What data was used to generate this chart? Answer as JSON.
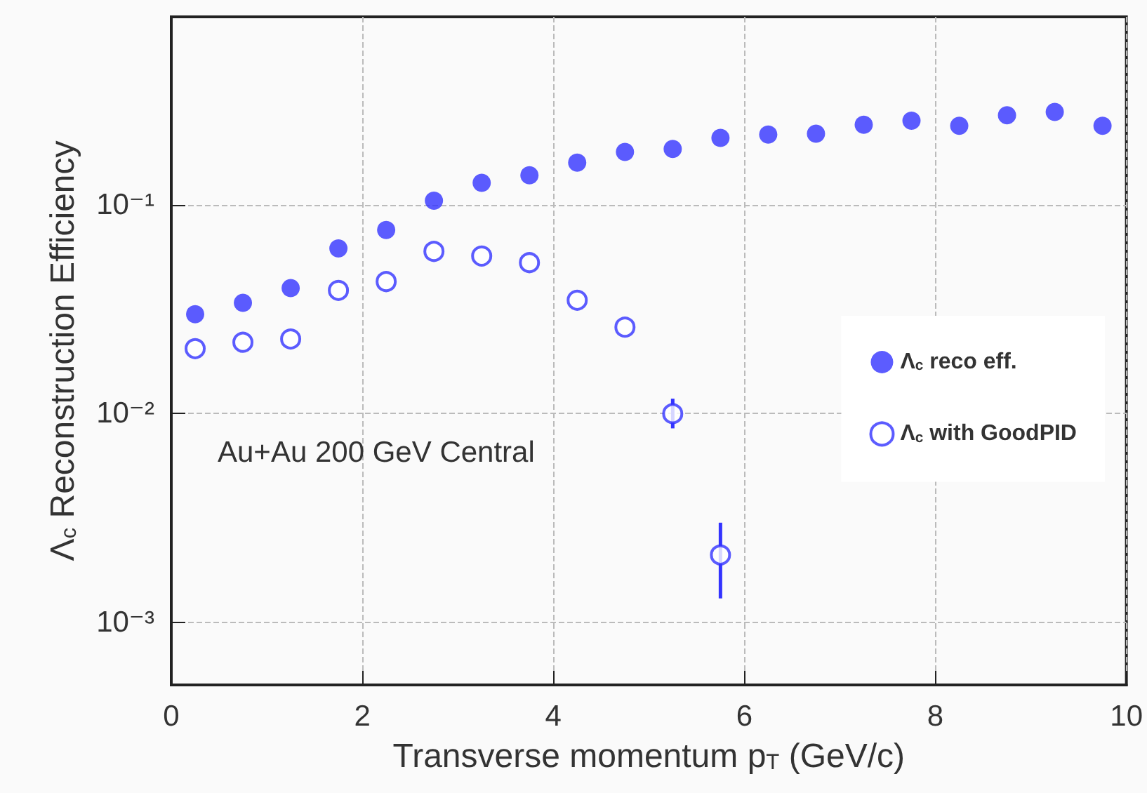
{
  "chart_data": {
    "type": "scatter",
    "xlabel": "Transverse momentum p$_{T}$ (GeV/c)",
    "ylabel": "Λ$_{c}$ Reconstruction Efficiency",
    "xlim": [
      0,
      10
    ],
    "xticks": [
      0,
      2,
      4,
      6,
      8,
      10
    ],
    "ylim": [
      0.0005,
      0.8
    ],
    "yticks": [
      {
        "value": 0.001,
        "label": "10⁻³"
      },
      {
        "value": 0.01,
        "label": "10⁻²"
      },
      {
        "value": 0.1,
        "label": "10⁻¹"
      }
    ],
    "log": "y",
    "grid": true,
    "legend": "right",
    "marker": "circle",
    "annotations": [
      "Au+Au 200 GeV Central"
    ],
    "x": [
      0.25,
      0.75,
      1.25,
      1.75,
      2.25,
      2.75,
      3.25,
      3.75,
      4.25,
      4.75,
      5.25,
      5.75,
      6.25,
      6.75,
      7.25,
      7.75,
      8.25,
      8.75,
      9.25,
      9.75
    ],
    "series": [
      {
        "name": "Λ$_{c}$ reco eff.",
        "color": "#3333ff",
        "values": [
          0.03,
          0.034,
          0.04,
          0.062,
          0.076,
          0.105,
          0.128,
          0.139,
          0.16,
          0.18,
          0.186,
          0.21,
          0.218,
          0.22,
          0.243,
          0.254,
          0.24,
          0.27,
          0.28,
          0.24
        ]
      },
      {
        "name": "Λ$_{c}$ with GoodPID",
        "color": "#3333ff",
        "x": [
          0.25,
          0.75,
          1.25,
          1.75,
          2.25,
          2.75,
          3.25,
          3.75,
          4.25,
          4.75,
          5.25,
          5.75
        ],
        "values": [
          0.0205,
          0.022,
          0.0228,
          0.039,
          0.043,
          0.06,
          0.057,
          0.053,
          0.035,
          0.026,
          0.01,
          0.0021
        ],
        "errors": [
          null,
          null,
          null,
          null,
          null,
          null,
          null,
          null,
          null,
          null,
          [
            0.0085,
            0.0118
          ],
          [
            0.0013,
            0.003
          ]
        ]
      }
    ]
  }
}
